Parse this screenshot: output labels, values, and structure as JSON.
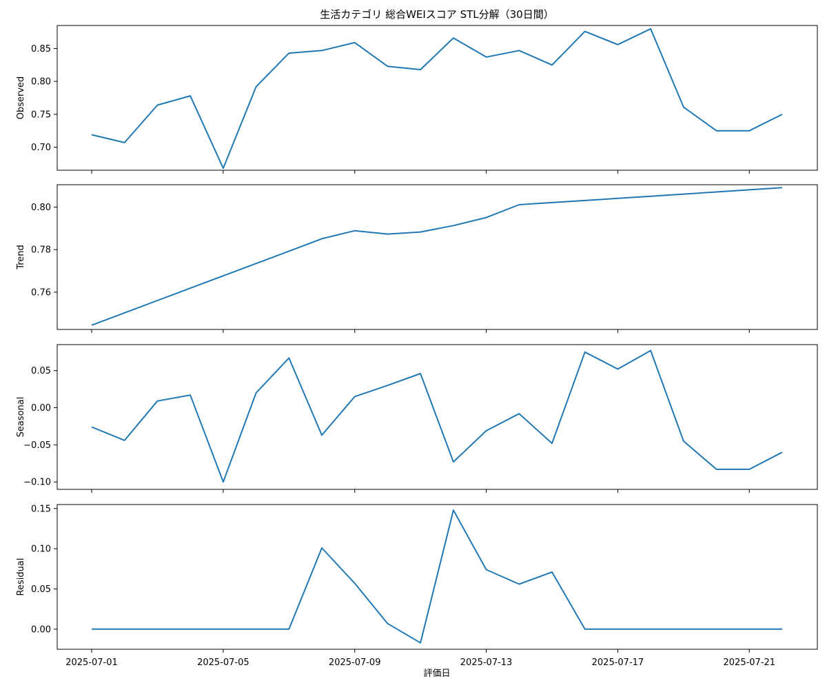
{
  "chart_data": {
    "type": "line",
    "title": "生活カテゴリ 総合WEIスコア STL分解（30日間）",
    "xlabel": "評価日",
    "x": [
      "2025-07-01",
      "2025-07-02",
      "2025-07-03",
      "2025-07-04",
      "2025-07-05",
      "2025-07-06",
      "2025-07-07",
      "2025-07-08",
      "2025-07-09",
      "2025-07-10",
      "2025-07-11",
      "2025-07-12",
      "2025-07-13",
      "2025-07-14",
      "2025-07-15",
      "2025-07-16",
      "2025-07-17",
      "2025-07-18",
      "2025-07-19",
      "2025-07-20",
      "2025-07-21",
      "2025-07-22"
    ],
    "xticks": [
      "2025-07-01",
      "2025-07-05",
      "2025-07-09",
      "2025-07-13",
      "2025-07-17",
      "2025-07-21"
    ],
    "line_color": "#1f77b4",
    "grid": false,
    "panels": [
      {
        "ylabel": "Observed",
        "ylim": [
          0.665,
          0.885
        ],
        "yticks": [
          0.7,
          0.75,
          0.8,
          0.85
        ],
        "ytick_labels": [
          "0.70",
          "0.75",
          "0.80",
          "0.85"
        ],
        "values": [
          0.719,
          0.707,
          0.764,
          0.778,
          0.668,
          0.792,
          0.843,
          0.847,
          0.859,
          0.823,
          0.818,
          0.866,
          0.837,
          0.847,
          0.825,
          0.876,
          0.856,
          0.88,
          0.761,
          0.725,
          0.725,
          0.75
        ]
      },
      {
        "ylabel": "Trend",
        "ylim": [
          0.7425,
          0.8105
        ],
        "yticks": [
          0.76,
          0.78,
          0.8
        ],
        "ytick_labels": [
          "0.76",
          "0.78",
          "0.80"
        ],
        "values": [
          0.7445,
          0.7503,
          0.7561,
          0.7619,
          0.7677,
          0.7735,
          0.7793,
          0.7851,
          0.7889,
          0.7873,
          0.7883,
          0.7913,
          0.7951,
          0.8011,
          0.8021,
          0.8031,
          0.8041,
          0.8051,
          0.8061,
          0.8071,
          0.8081,
          0.8091
        ]
      },
      {
        "ylabel": "Seasonal",
        "ylim": [
          -0.11,
          0.085
        ],
        "yticks": [
          -0.1,
          -0.05,
          0.0,
          0.05
        ],
        "ytick_labels": [
          "−0.10",
          "−0.05",
          "0.00",
          "0.05"
        ],
        "values": [
          -0.026,
          -0.044,
          0.009,
          0.017,
          -0.1,
          0.02,
          0.067,
          -0.037,
          0.015,
          0.03,
          0.046,
          -0.073,
          -0.031,
          -0.008,
          -0.048,
          0.075,
          0.052,
          0.077,
          -0.045,
          -0.083,
          -0.083,
          -0.06
        ]
      },
      {
        "ylabel": "Residual",
        "ylim": [
          -0.025,
          0.155
        ],
        "yticks": [
          0.0,
          0.05,
          0.1,
          0.15
        ],
        "ytick_labels": [
          "0.00",
          "0.05",
          "0.10",
          "0.15"
        ],
        "values": [
          0,
          0,
          0,
          0,
          0,
          0,
          0,
          0.101,
          0.057,
          0.007,
          -0.017,
          0.148,
          0.074,
          0.056,
          0.071,
          0,
          0,
          0,
          0,
          0,
          0,
          0
        ]
      }
    ]
  }
}
